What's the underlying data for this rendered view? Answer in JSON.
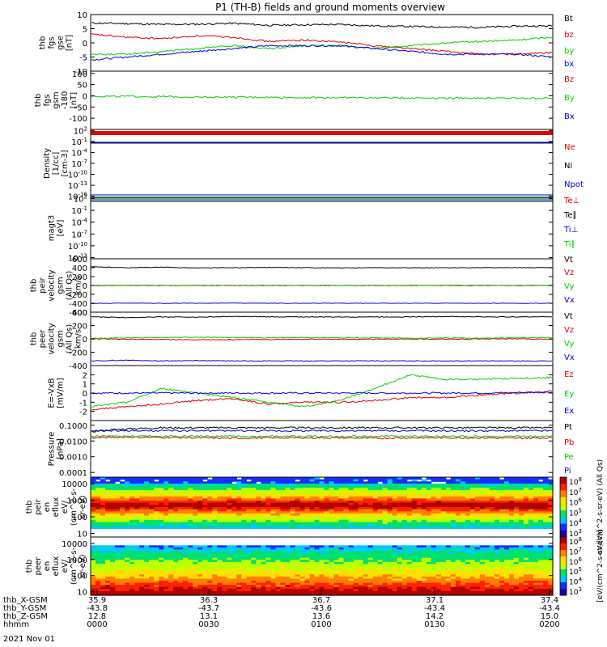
{
  "title": "P1 (TH-B) fields and ground moments overview",
  "colors": {
    "black": "#000000",
    "red": "#e00000",
    "green": "#00d000",
    "blue": "#0000e0"
  },
  "chart_data": [
    {
      "id": "fgs_gse",
      "type": "line",
      "ylabel": [
        "thb",
        "fgs",
        "gse",
        "[nT]"
      ],
      "ylim": [
        -10,
        10
      ],
      "yticks": [
        "10",
        "5",
        "0",
        "-5",
        "-10"
      ],
      "series": [
        {
          "name": "Bt",
          "color": "black",
          "values": [
            7,
            6.8,
            6.5,
            6.6,
            6.9,
            6.2,
            6.4,
            6.5,
            6,
            5.8,
            5.6,
            5.5,
            5.9,
            6
          ]
        },
        {
          "name": "bz",
          "color": "red",
          "values": [
            3,
            2,
            1.5,
            2.5,
            2,
            0.5,
            1,
            0.3,
            -1,
            -2,
            -3,
            -4,
            -4,
            -3.5
          ]
        },
        {
          "name": "by",
          "color": "green",
          "values": [
            -4,
            -4,
            -3,
            -2,
            -1,
            -2,
            -1,
            -1,
            -2,
            -1,
            0,
            0.5,
            1,
            2
          ]
        },
        {
          "name": "bx",
          "color": "blue",
          "values": [
            -6,
            -5,
            -4,
            -3,
            -2,
            -1,
            -1,
            -1,
            -2,
            -3,
            -4,
            -4,
            -4,
            -5
          ]
        }
      ]
    },
    {
      "id": "fgs_gsm",
      "type": "line",
      "ylabel": [
        "thb",
        "fgs",
        "gsm",
        "-180",
        "[nT]"
      ],
      "ylim": [
        -150,
        110
      ],
      "yticks": [
        "100",
        "50",
        "0",
        "-50",
        "-100"
      ],
      "series": [
        {
          "name": "Bz",
          "color": "red"
        },
        {
          "name": "By",
          "color": "green",
          "values": [
            -2,
            -3,
            -4,
            -5,
            -6,
            -7,
            -8,
            -8,
            -9,
            -9,
            -10,
            -10,
            -11,
            -11
          ]
        },
        {
          "name": "Bx",
          "color": "blue"
        }
      ]
    },
    {
      "id": "density",
      "type": "line",
      "log": true,
      "ylabel": [
        "Density",
        "[1/cc]",
        "[cm-3]"
      ],
      "yticks": [
        "10^2",
        "10^-1",
        "10^-4",
        "10^-7",
        "10^-10",
        "10^-13",
        "10^-16"
      ],
      "series": [
        {
          "name": "Ne",
          "color": "red"
        },
        {
          "name": "Ni",
          "color": "black"
        },
        {
          "name": "Npot",
          "color": "blue"
        }
      ]
    },
    {
      "id": "temperature",
      "type": "line",
      "log": true,
      "ylabel": [
        "magt3",
        "[eV]"
      ],
      "yticks": [
        "10^2",
        "10^-1",
        "10^-4",
        "10^-7",
        "10^-10",
        "10^-13"
      ],
      "series": [
        {
          "name": "Te⊥",
          "color": "red"
        },
        {
          "name": "Te∥",
          "color": "black"
        },
        {
          "name": "Ti⊥",
          "color": "blue"
        },
        {
          "name": "Ti∥",
          "color": "green"
        }
      ]
    },
    {
      "id": "peir_velocity",
      "type": "line",
      "ylabel": [
        "thb",
        "peir",
        "velocity",
        "gsm",
        "(All Qs)",
        "km/s"
      ],
      "ylim": [
        -600,
        600
      ],
      "yticks": [
        "600",
        "400",
        "200",
        "0",
        "-200",
        "-400",
        "-600"
      ],
      "series": [
        {
          "name": "Vt",
          "color": "black",
          "values": [
            420,
            400,
            410,
            395,
            400,
            405,
            400,
            395,
            400,
            398,
            400,
            402,
            400,
            405
          ]
        },
        {
          "name": "Vz",
          "color": "red",
          "values": [
            0,
            0,
            0,
            0,
            0,
            0,
            0,
            0,
            0,
            0,
            0,
            0,
            0,
            0
          ]
        },
        {
          "name": "Vy",
          "color": "green",
          "values": [
            5,
            5,
            5,
            5,
            5,
            5,
            5,
            5,
            5,
            5,
            5,
            5,
            5,
            5
          ]
        },
        {
          "name": "Vx",
          "color": "blue",
          "values": [
            -405,
            -395,
            -400,
            -400,
            -395,
            -400,
            -400,
            -400,
            -400,
            -400,
            -398,
            -400,
            -400,
            -400
          ]
        }
      ]
    },
    {
      "id": "peer_velocity",
      "type": "line",
      "ylabel": [
        "thb",
        "peer",
        "velocity",
        "gsm",
        "(All Qs)",
        "km/s"
      ],
      "ylim": [
        -400,
        400
      ],
      "yticks": [
        "400",
        "200",
        "0",
        "-200",
        "-400"
      ],
      "series": [
        {
          "name": "Vt",
          "color": "black",
          "values": [
            330,
            320,
            330,
            325,
            335,
            330,
            330,
            328,
            330,
            330,
            335,
            330,
            330,
            332
          ]
        },
        {
          "name": "Vz",
          "color": "red",
          "values": [
            0,
            -5,
            -10,
            -15,
            -10,
            -10,
            -5,
            -5,
            -5,
            0,
            -5,
            0,
            0,
            -5
          ]
        },
        {
          "name": "Vy",
          "color": "green",
          "values": [
            10,
            15,
            20,
            25,
            20,
            15,
            20,
            15,
            15,
            10,
            15,
            10,
            15,
            20
          ]
        },
        {
          "name": "Vx",
          "color": "blue",
          "values": [
            -330,
            -320,
            -330,
            -325,
            -330,
            -330,
            -330,
            -330,
            -330,
            -330,
            -330,
            -330,
            -332,
            -332
          ]
        }
      ]
    },
    {
      "id": "efield",
      "type": "line",
      "ylabel": [
        "E=-VxB",
        "[mV/m]"
      ],
      "ylim": [
        -3,
        3
      ],
      "yticks": [
        "2",
        "1",
        "0",
        "-1",
        "-2"
      ],
      "series": [
        {
          "name": "Ez",
          "color": "red",
          "values": [
            -1.8,
            -1.5,
            -1.2,
            -0.8,
            -0.6,
            -1.2,
            -1,
            -1,
            -0.8,
            -0.5,
            -0.5,
            -0.2,
            0,
            0.2
          ]
        },
        {
          "name": "Ey",
          "color": "green",
          "values": [
            -1.5,
            -1,
            0.5,
            0,
            -0.5,
            -1,
            -1.5,
            -0.8,
            0.5,
            2,
            1.5,
            1.5,
            1.6,
            1.7
          ]
        },
        {
          "name": "Ex",
          "color": "blue",
          "values": [
            0,
            0,
            0,
            0,
            0,
            0,
            0,
            0,
            0,
            0,
            0,
            0,
            0.05,
            0.1
          ]
        }
      ]
    },
    {
      "id": "pressure",
      "type": "line",
      "log": true,
      "ylabel": [
        "Pressure",
        "[nPa]"
      ],
      "yticks": [
        "0.1000",
        "0.0100",
        "0.0010",
        "0.0001"
      ],
      "series": [
        {
          "name": "Pt",
          "color": "black",
          "values": [
            0.04,
            0.06,
            0.07,
            0.07,
            0.07,
            0.07,
            0.07,
            0.07,
            0.07,
            0.07,
            0.07,
            0.07,
            0.07,
            0.07
          ]
        },
        {
          "name": "Pb",
          "color": "red",
          "values": [
            0.016,
            0.018,
            0.017,
            0.016,
            0.015,
            0.016,
            0.016,
            0.016,
            0.015,
            0.016,
            0.016,
            0.016,
            0.015,
            0.016
          ]
        },
        {
          "name": "Pe",
          "color": "green",
          "values": [
            0.02,
            0.02,
            0.02,
            0.02,
            0.02,
            0.02,
            0.02,
            0.02,
            0.02,
            0.02,
            0.02,
            0.02,
            0.02,
            0.02
          ]
        },
        {
          "name": "Pi",
          "color": "blue",
          "values": [
            0.045,
            0.045,
            0.045,
            0.045,
            0.045,
            0.045,
            0.045,
            0.045,
            0.045,
            0.045,
            0.045,
            0.045,
            0.045,
            0.045
          ]
        }
      ]
    },
    {
      "id": "peir_eflux",
      "type": "heatmap",
      "ylabel": [
        "thb",
        "peir",
        "en",
        "eflux",
        "eV/",
        "(cm^2-s-",
        "sr-eV)"
      ],
      "yticks": [
        "10000",
        "1000",
        "100",
        "10"
      ],
      "colorbar": {
        "ticks": [
          "10^8",
          "10^7",
          "10^6",
          "10^5",
          "10^4",
          "10^3"
        ],
        "label": "eV/(cm^2-s-sr-eV) (All Qs)"
      }
    },
    {
      "id": "peer_eflux",
      "type": "heatmap",
      "ylabel": [
        "thb",
        "peer",
        "en",
        "eflux",
        "eV/",
        "(cm^2-s-",
        "sr-eV)"
      ],
      "yticks": [
        "10000",
        "1000",
        "100",
        "10"
      ],
      "colorbar": {
        "ticks": [
          "10^8",
          "10^7",
          "10^6",
          "10^5",
          "10^4",
          "10^3"
        ],
        "label": "[eV/(cm^2-s-sr-eV)]"
      }
    }
  ],
  "xaxis": {
    "rows": [
      {
        "label": "thb_X-GSM",
        "values": [
          "35.9",
          "36.3",
          "36.7",
          "37.1",
          "37.4"
        ]
      },
      {
        "label": "thb_Y-GSM",
        "values": [
          "-43.8",
          "-43.7",
          "-43.6",
          "-43.4",
          "-43.4"
        ]
      },
      {
        "label": "thb_Z-GSM",
        "values": [
          "12.8",
          "13.1",
          "13.6",
          "14.2",
          "15.0"
        ]
      },
      {
        "label": "hhmm",
        "values": [
          "0000",
          "0030",
          "0100",
          "0130",
          "0200"
        ]
      }
    ],
    "date": "2021 Nov 01"
  }
}
